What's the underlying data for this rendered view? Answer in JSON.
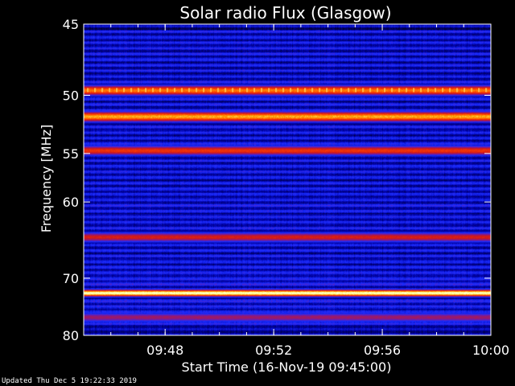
{
  "chart_data": {
    "type": "heatmap",
    "title": "Solar radio Flux (Glasgow)",
    "xlabel": "Start Time (16-Nov-19 09:45:00)",
    "ylabel": "Frequency [MHz]",
    "x_range_minutes": [
      0,
      15
    ],
    "x_ticks": [
      {
        "minute": 3,
        "label": "09:48"
      },
      {
        "minute": 7,
        "label": "09:52"
      },
      {
        "minute": 11,
        "label": "09:56"
      },
      {
        "minute": 15,
        "label": "10:00"
      }
    ],
    "ylim": [
      45,
      80
    ],
    "y_scale": "reciprocal",
    "y_ticks": [
      45,
      50,
      55,
      60,
      70,
      80
    ],
    "colormap": [
      "#00001e",
      "#0000a0",
      "#1a2cff",
      "#7a1a9a",
      "#d01818",
      "#ff3c00",
      "#ff9600",
      "#ffff80",
      "#ffffff"
    ],
    "emission_bands": [
      {
        "freq_mhz": 49.6,
        "intensity": 0.75,
        "note": "periodic dotted interference"
      },
      {
        "freq_mhz": 51.7,
        "intensity": 0.82
      },
      {
        "freq_mhz": 54.7,
        "intensity": 0.62
      },
      {
        "freq_mhz": 64.2,
        "intensity": 0.55
      },
      {
        "freq_mhz": 72.3,
        "intensity": 1.0
      },
      {
        "freq_mhz": 76.5,
        "intensity": 0.45
      }
    ]
  },
  "footer": {
    "updated": "Updated Thu Dec  5 19:22:33 2019"
  }
}
